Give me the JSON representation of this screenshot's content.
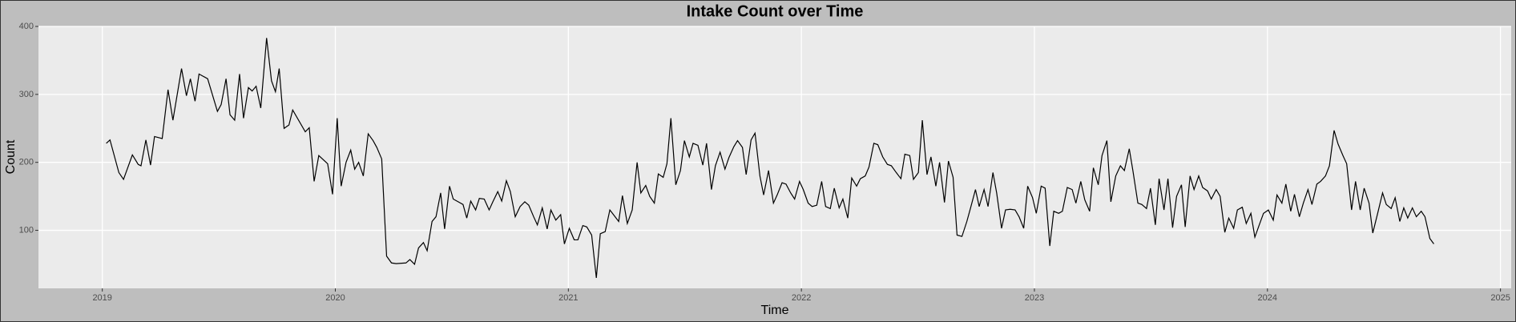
{
  "chart_data": {
    "type": "line",
    "title": "Intake Count over Time",
    "x_label": "Time",
    "y_label": "Count",
    "color": "#000000",
    "grid": true,
    "xlim": [
      2018.726,
      2025.046
    ],
    "xticks": [
      2019,
      2020,
      2021,
      2022,
      2023,
      2024,
      2025
    ],
    "ylim": [
      14.6,
      400
    ],
    "yticks": [
      100,
      200,
      300,
      400
    ],
    "x": [
      2019.017,
      2019.033,
      2019.071,
      2019.091,
      2019.129,
      2019.154,
      2019.166,
      2019.187,
      2019.207,
      2019.224,
      2019.257,
      2019.282,
      2019.303,
      2019.34,
      2019.361,
      2019.378,
      2019.398,
      2019.415,
      2019.452,
      2019.494,
      2019.51,
      2019.531,
      2019.548,
      2019.568,
      2019.589,
      2019.606,
      2019.627,
      2019.643,
      2019.66,
      2019.68,
      2019.705,
      2019.726,
      2019.743,
      2019.759,
      2019.78,
      2019.801,
      2019.817,
      2019.871,
      2019.888,
      2019.909,
      2019.929,
      2019.967,
      2019.988,
      2020.008,
      2020.025,
      2020.046,
      2020.066,
      2020.083,
      2020.1,
      2020.12,
      2020.141,
      2020.162,
      2020.178,
      2020.199,
      2020.22,
      2020.241,
      2020.261,
      2020.303,
      2020.32,
      2020.34,
      2020.357,
      2020.378,
      2020.394,
      2020.415,
      2020.432,
      2020.452,
      2020.469,
      2020.49,
      2020.506,
      2020.527,
      2020.548,
      2020.564,
      2020.581,
      2020.602,
      2020.618,
      2020.639,
      2020.66,
      2020.676,
      2020.697,
      2020.714,
      2020.734,
      2020.751,
      2020.772,
      2020.793,
      2020.813,
      2020.83,
      2020.851,
      2020.867,
      2020.888,
      2020.909,
      2020.925,
      2020.946,
      2020.967,
      2020.983,
      2021.004,
      2021.025,
      2021.041,
      2021.062,
      2021.079,
      2021.1,
      2021.12,
      2021.137,
      2021.158,
      2021.178,
      2021.216,
      2021.232,
      2021.253,
      2021.274,
      2021.295,
      2021.311,
      2021.332,
      2021.349,
      2021.369,
      2021.386,
      2021.407,
      2021.423,
      2021.44,
      2021.461,
      2021.481,
      2021.498,
      2021.519,
      2021.535,
      2021.556,
      2021.577,
      2021.593,
      2021.614,
      2021.631,
      2021.651,
      2021.672,
      2021.689,
      2021.71,
      2021.726,
      2021.747,
      2021.763,
      2021.784,
      2021.801,
      2021.822,
      2021.838,
      2021.859,
      2021.88,
      2021.896,
      2021.917,
      2021.934,
      2021.954,
      2021.971,
      2021.992,
      2022.008,
      2022.029,
      2022.046,
      2022.066,
      2022.087,
      2022.104,
      2022.124,
      2022.141,
      2022.162,
      2022.178,
      2022.199,
      2022.216,
      2022.237,
      2022.253,
      2022.274,
      2022.29,
      2022.311,
      2022.328,
      2022.349,
      2022.369,
      2022.386,
      2022.407,
      2022.427,
      2022.444,
      2022.465,
      2022.481,
      2022.502,
      2022.519,
      2022.539,
      2022.556,
      2022.577,
      2022.593,
      2022.614,
      2022.631,
      2022.651,
      2022.668,
      2022.689,
      2022.71,
      2022.726,
      2022.747,
      2022.763,
      2022.784,
      2022.801,
      2022.822,
      2022.838,
      2022.859,
      2022.876,
      2022.896,
      2022.917,
      2022.934,
      2022.954,
      2022.971,
      2022.992,
      2023.008,
      2023.029,
      2023.046,
      2023.066,
      2023.083,
      2023.104,
      2023.12,
      2023.141,
      2023.162,
      2023.178,
      2023.199,
      2023.216,
      2023.237,
      2023.253,
      2023.274,
      2023.29,
      2023.311,
      2023.328,
      2023.349,
      2023.369,
      2023.386,
      2023.407,
      2023.423,
      2023.444,
      2023.461,
      2023.481,
      2023.498,
      2023.519,
      2023.535,
      2023.556,
      2023.573,
      2023.593,
      2023.61,
      2023.631,
      2023.647,
      2023.668,
      2023.685,
      2023.705,
      2023.722,
      2023.743,
      2023.759,
      2023.78,
      2023.797,
      2023.817,
      2023.834,
      2023.855,
      2023.871,
      2023.892,
      2023.909,
      2023.929,
      2023.946,
      2023.967,
      2023.983,
      2024.004,
      2024.025,
      2024.041,
      2024.062,
      2024.079,
      2024.1,
      2024.116,
      2024.137,
      2024.154,
      2024.174,
      2024.191,
      2024.212,
      2024.228,
      2024.249,
      2024.266,
      2024.286,
      2024.303,
      2024.324,
      2024.34,
      2024.361,
      2024.378,
      2024.398,
      2024.415,
      2024.436,
      2024.452,
      2024.473,
      2024.494,
      2024.51,
      2024.531,
      2024.548,
      2024.568,
      2024.585,
      2024.602,
      2024.622,
      2024.639,
      2024.66,
      2024.676,
      2024.697,
      2024.714
    ],
    "values": [
      228,
      233,
      185,
      175,
      211,
      197,
      195,
      233,
      196,
      238,
      235,
      307,
      262,
      338,
      298,
      323,
      290,
      330,
      323,
      275,
      285,
      323,
      270,
      262,
      330,
      265,
      310,
      305,
      312,
      280,
      383,
      320,
      304,
      338,
      250,
      255,
      277,
      245,
      251,
      172,
      210,
      198,
      153,
      265,
      165,
      200,
      218,
      190,
      200,
      180,
      242,
      232,
      222,
      205,
      62,
      52,
      51,
      52,
      57,
      50,
      74,
      82,
      70,
      113,
      120,
      155,
      102,
      165,
      146,
      142,
      138,
      118,
      143,
      130,
      147,
      146,
      130,
      142,
      157,
      143,
      173,
      157,
      120,
      135,
      142,
      137,
      120,
      108,
      133,
      102,
      130,
      115,
      123,
      80,
      103,
      86,
      86,
      107,
      105,
      93,
      30,
      95,
      98,
      130,
      113,
      151,
      110,
      130,
      200,
      155,
      166,
      150,
      140,
      183,
      178,
      198,
      265,
      167,
      188,
      232,
      208,
      228,
      225,
      196,
      228,
      160,
      195,
      215,
      190,
      207,
      223,
      232,
      222,
      182,
      233,
      243,
      180,
      152,
      188,
      140,
      152,
      170,
      168,
      155,
      146,
      172,
      160,
      140,
      135,
      137,
      172,
      135,
      132,
      162,
      133,
      146,
      118,
      177,
      165,
      176,
      180,
      193,
      228,
      226,
      208,
      197,
      195,
      185,
      176,
      212,
      210,
      175,
      185,
      262,
      182,
      208,
      165,
      200,
      141,
      202,
      178,
      93,
      91,
      113,
      133,
      160,
      135,
      160,
      135,
      185,
      155,
      103,
      130,
      131,
      130,
      120,
      103,
      165,
      148,
      125,
      165,
      162,
      77,
      128,
      125,
      128,
      163,
      160,
      140,
      172,
      145,
      128,
      192,
      167,
      210,
      232,
      142,
      180,
      195,
      188,
      220,
      187,
      140,
      138,
      132,
      162,
      108,
      176,
      130,
      176,
      104,
      150,
      167,
      105,
      180,
      160,
      180,
      163,
      158,
      146,
      160,
      150,
      97,
      118,
      103,
      130,
      134,
      110,
      125,
      90,
      110,
      125,
      130,
      115,
      152,
      140,
      168,
      128,
      153,
      120,
      140,
      160,
      138,
      168,
      172,
      180,
      195,
      247,
      227,
      210,
      198,
      130,
      172,
      130,
      162,
      140,
      96,
      125,
      155,
      138,
      132,
      148,
      113,
      133,
      118,
      133,
      120,
      128,
      120,
      88,
      80
    ]
  }
}
